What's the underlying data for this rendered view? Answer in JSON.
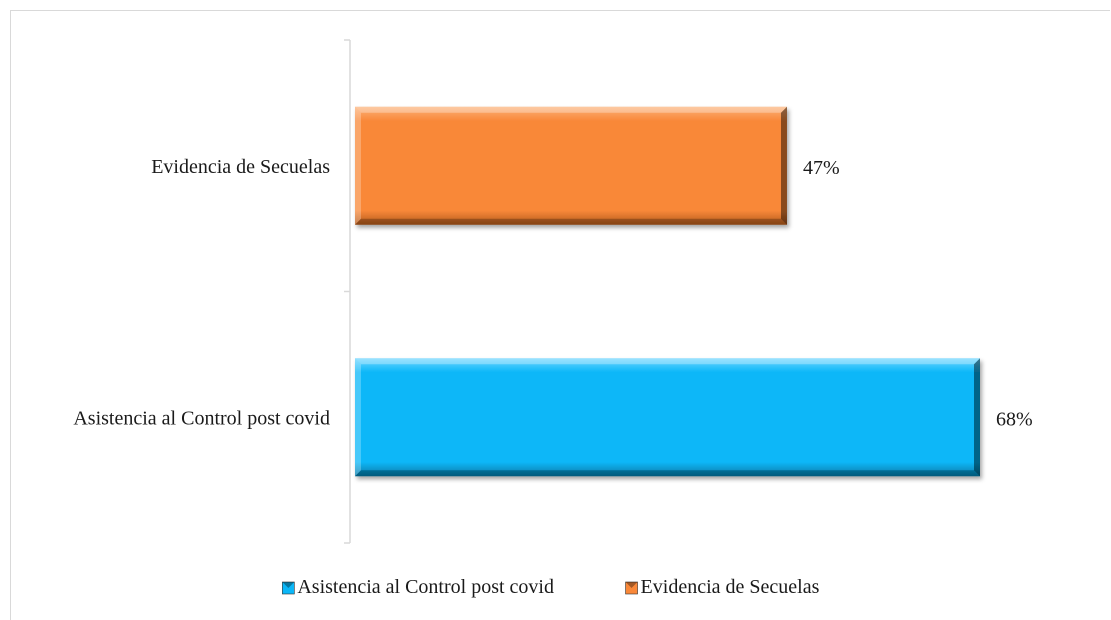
{
  "chart_data": {
    "type": "bar",
    "orientation": "horizontal",
    "categories": [
      "Evidencia de Secuelas",
      "Asistencia al Control post covid"
    ],
    "series": [
      {
        "name": "Evidencia de Secuelas",
        "values": [
          47,
          null
        ]
      },
      {
        "name": "Asistencia al Control post covid",
        "values": [
          null,
          68
        ]
      }
    ],
    "values": [
      47,
      68
    ],
    "data_labels": [
      "47%",
      "68%"
    ],
    "unit": "%",
    "xlim": [
      0,
      68
    ],
    "grid": false,
    "legend_position": "bottom",
    "legend": [
      {
        "label": "Asistencia al Control post covid",
        "color": "#0ab7f8"
      },
      {
        "label": "Evidencia de Secuelas",
        "color": "#f98839"
      }
    ],
    "colors": {
      "Evidencia de Secuelas": "#f98839",
      "Asistencia al Control post covid": "#0ab7f8",
      "axis": "#d9d9d9"
    }
  }
}
